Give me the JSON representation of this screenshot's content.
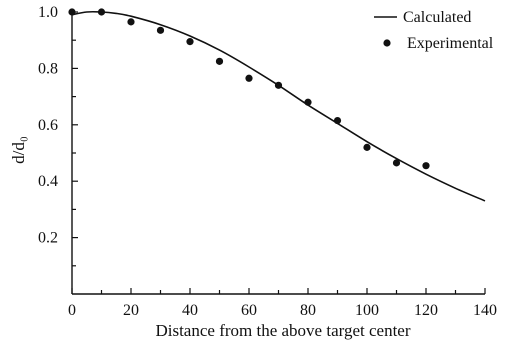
{
  "chart_data": {
    "type": "line",
    "title": "",
    "xlabel": "Distance from the above target center",
    "ylabel": "d/d₀",
    "xlim": [
      0,
      140
    ],
    "ylim": [
      0,
      1.0
    ],
    "x_ticks": [
      "0",
      "20",
      "40",
      "60",
      "80",
      "100",
      "120",
      "140"
    ],
    "y_ticks": [
      "0.2",
      "0.4",
      "0.6",
      "0.8",
      "1.0"
    ],
    "grid": false,
    "legend": "top-right",
    "series": [
      {
        "name": "Calculated",
        "kind": "line",
        "x": [
          0,
          5,
          10,
          15,
          20,
          30,
          40,
          50,
          60,
          70,
          80,
          90,
          100,
          110,
          120,
          130,
          140
        ],
        "y": [
          0.99,
          1.0,
          1.0,
          0.995,
          0.985,
          0.955,
          0.915,
          0.865,
          0.805,
          0.74,
          0.67,
          0.605,
          0.54,
          0.48,
          0.425,
          0.375,
          0.33
        ]
      },
      {
        "name": "Experimental",
        "kind": "scatter",
        "x": [
          0,
          10,
          20,
          30,
          40,
          50,
          60,
          70,
          80,
          90,
          100,
          110,
          120
        ],
        "y": [
          1.0,
          1.0,
          0.965,
          0.935,
          0.895,
          0.825,
          0.765,
          0.74,
          0.68,
          0.615,
          0.52,
          0.465,
          0.455
        ]
      }
    ]
  }
}
